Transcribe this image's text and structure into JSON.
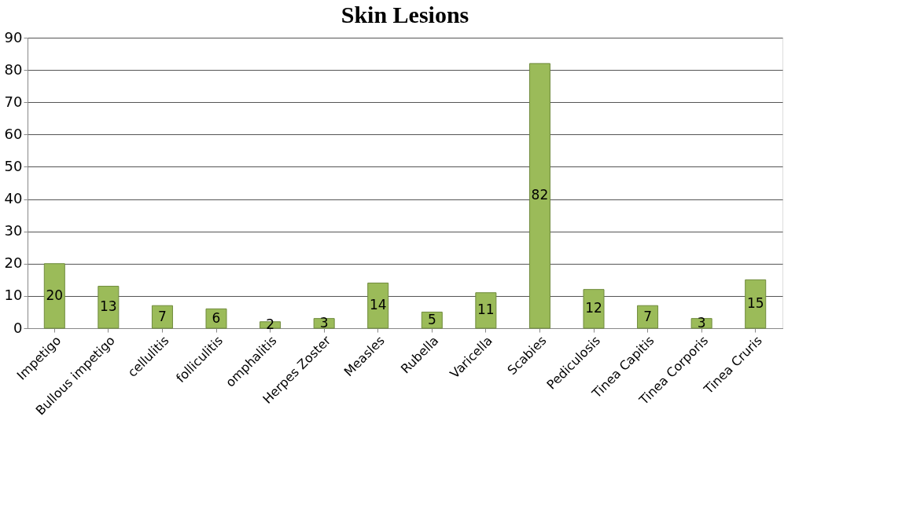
{
  "chart_data": {
    "type": "bar",
    "title": "Skin Lesions",
    "categories": [
      "Impetigo",
      "Bullous impetigo",
      "cellulitis",
      "folliculitis",
      "omphalitis",
      "Herpes Zoster",
      "Measles",
      "Rubella",
      "Varicella",
      "Scabies",
      "Pediculosis",
      "Tinea Capitis",
      "Tinea Corporis",
      "Tinea Cruris"
    ],
    "values": [
      20,
      13,
      7,
      6,
      2,
      3,
      14,
      5,
      11,
      82,
      12,
      7,
      3,
      15
    ],
    "color": "#9bbb59",
    "ylim": [
      0,
      90
    ],
    "yticks": [
      0,
      10,
      20,
      30,
      40,
      50,
      60,
      70,
      80,
      90
    ],
    "grid": "y",
    "data_labels": true
  }
}
